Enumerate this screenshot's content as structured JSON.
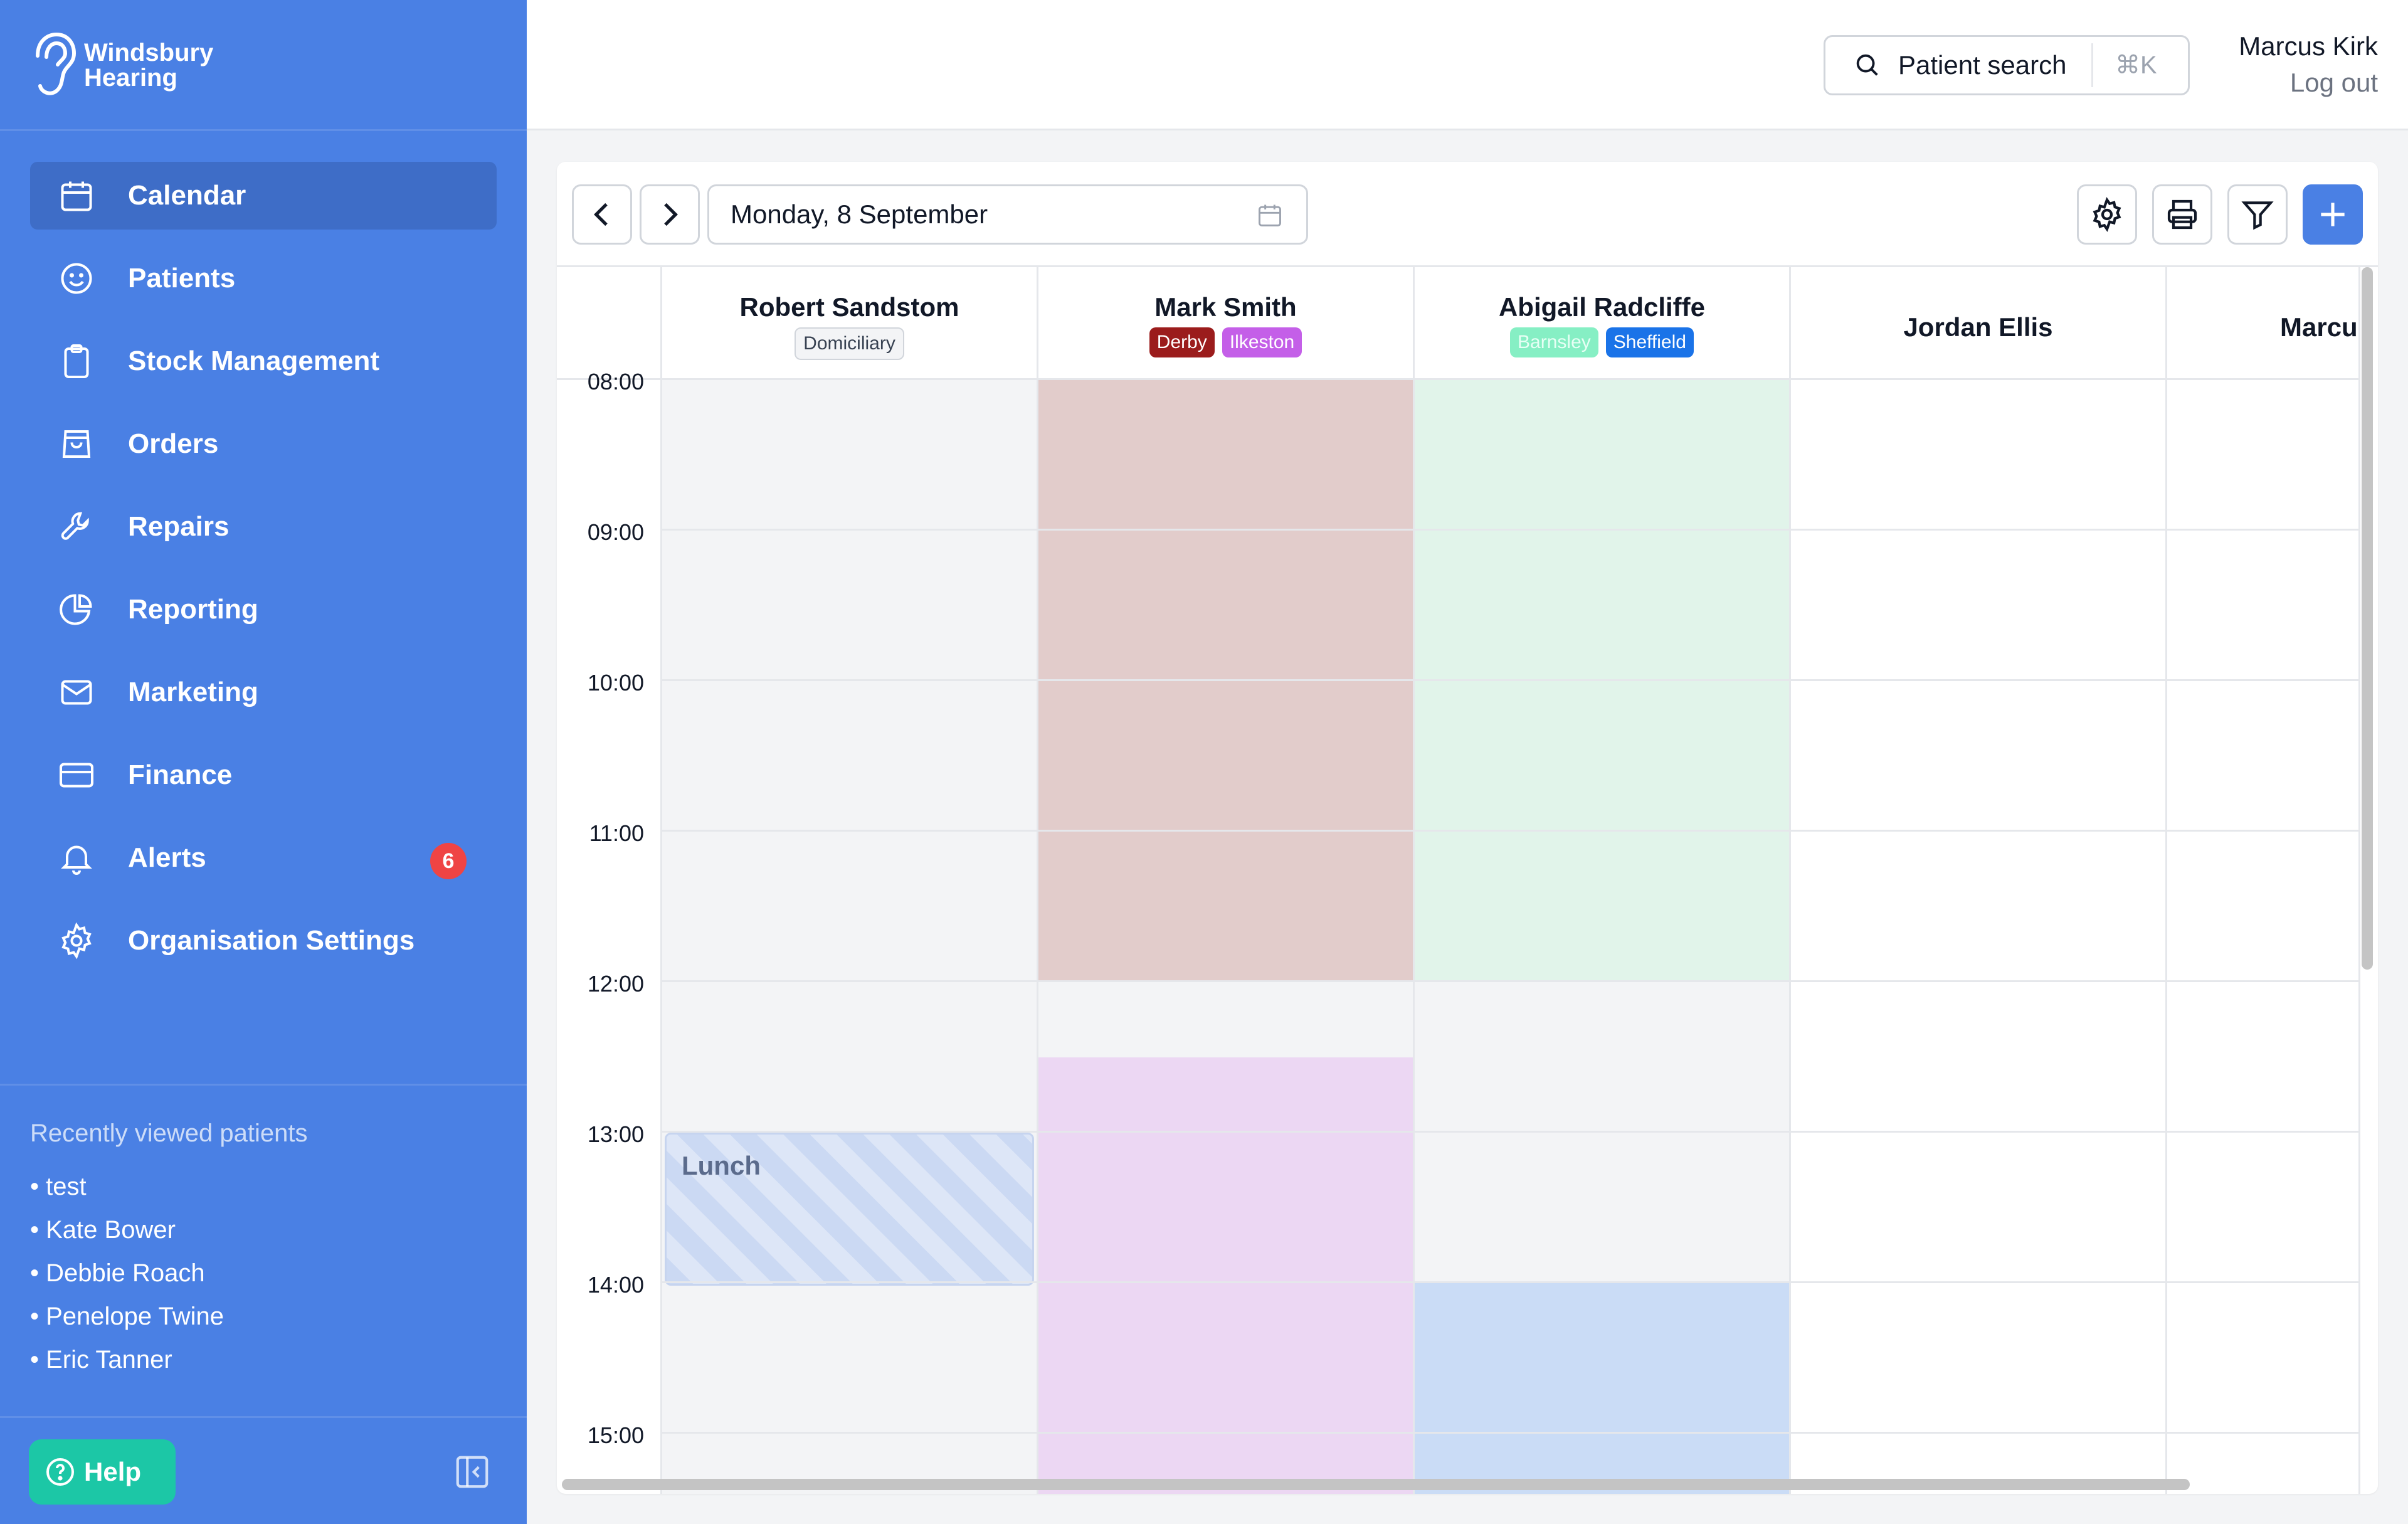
{
  "app": {
    "logo_line1": "Windsbury",
    "logo_line2": "Hearing"
  },
  "nav": [
    {
      "label": "Calendar",
      "icon": "calendar-icon",
      "active": true
    },
    {
      "label": "Patients",
      "icon": "smile-icon"
    },
    {
      "label": "Stock Management",
      "icon": "clipboard-icon"
    },
    {
      "label": "Orders",
      "icon": "shopping-bag-icon"
    },
    {
      "label": "Repairs",
      "icon": "wrench-icon"
    },
    {
      "label": "Reporting",
      "icon": "pie-chart-icon"
    },
    {
      "label": "Marketing",
      "icon": "mail-icon"
    },
    {
      "label": "Finance",
      "icon": "credit-card-icon"
    },
    {
      "label": "Alerts",
      "icon": "bell-icon",
      "badge": "6"
    },
    {
      "label": "Organisation Settings",
      "icon": "gear-icon"
    }
  ],
  "recent": {
    "title": "Recently viewed patients",
    "items": [
      "test",
      "Kate Bower",
      "Debbie Roach",
      "Penelope Twine",
      "Eric Tanner"
    ]
  },
  "help": {
    "label": "Help"
  },
  "topbar": {
    "search_label": "Patient search",
    "search_shortcut": "⌘K",
    "user_name": "Marcus Kirk",
    "logout_label": "Log out"
  },
  "calendar": {
    "date": "Monday, 8 September",
    "times": [
      "08:00",
      "09:00",
      "10:00",
      "11:00",
      "12:00",
      "13:00",
      "14:00",
      "15:00"
    ],
    "columns": [
      {
        "name": "Robert Sandstom",
        "tags": [
          "Domiciliary"
        ]
      },
      {
        "name": "Mark Smith",
        "tags": [
          "Derby",
          "Ilkeston"
        ]
      },
      {
        "name": "Abigail Radcliffe",
        "tags": [
          "Barnsley",
          "Sheffield"
        ]
      },
      {
        "name": "Jordan Ellis",
        "tags": []
      },
      {
        "name": "Marcu",
        "tags": []
      }
    ],
    "lunch_label": "Lunch",
    "colors": {
      "derby_block": "#e2cccb",
      "ilkeston_block": "#ecd7f3",
      "barnsley_block": "#e1f4ea",
      "sheffield_block": "#cadcf6",
      "unavailable": "#f3f4f6",
      "available": "#ffffff",
      "accent": "#4a80e4"
    }
  }
}
